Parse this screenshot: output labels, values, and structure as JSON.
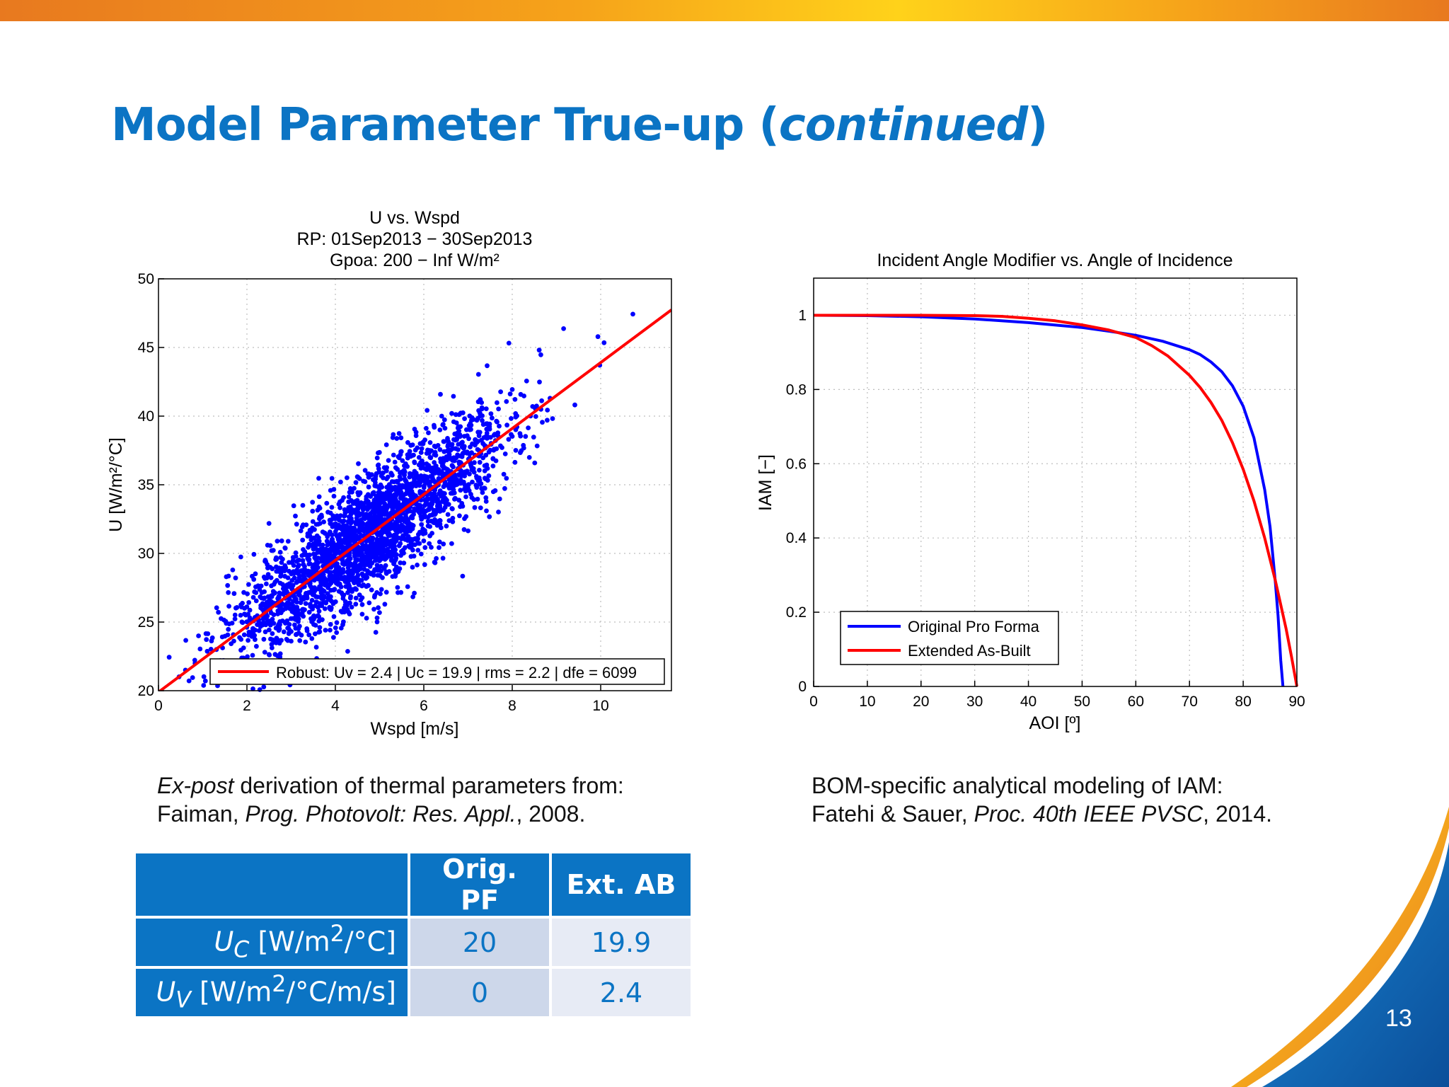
{
  "slide": {
    "title_main": "Model Parameter True-up (",
    "title_italic": "continued",
    "title_close": ")",
    "page_number": "13"
  },
  "captions": {
    "left_line1_italic": "Ex-post",
    "left_line1_rest": " derivation of thermal parameters from:",
    "left_line2_a": "Faiman, ",
    "left_line2_italic": "Prog. Photovolt: Res. Appl.",
    "left_line2_b": ", 2008.",
    "right_line1": "BOM-specific analytical modeling of IAM:",
    "right_line2_a": "Fatehi & Sauer, ",
    "right_line2_italic": "Proc. 40th IEEE PVSC",
    "right_line2_b": ", 2014."
  },
  "table": {
    "headers": [
      "",
      "Orig. PF",
      "Ext. AB"
    ],
    "rows": [
      {
        "symbol": "U",
        "sub": "C",
        "unit_a": " [W/m",
        "sup": "2",
        "unit_b": "/°C]",
        "values": [
          "20",
          "19.9"
        ]
      },
      {
        "symbol": "U",
        "sub": "V",
        "unit_a": " [W/m",
        "sup": "2",
        "unit_b": "/°C/m/s]",
        "values": [
          "0",
          "2.4"
        ]
      }
    ]
  },
  "colors": {
    "accent_blue": "#0b74c4",
    "scatter_blue": "#0000ff",
    "fit_red": "#ff0000",
    "iam_blue": "#0000ff",
    "iam_red": "#ff0000"
  },
  "chart_data": [
    {
      "type": "scatter",
      "title_lines": [
        "U vs. Wspd",
        "RP: 01Sep2013 − 30Sep2013",
        "Gpoa: 200 − Inf W/m²"
      ],
      "xlabel": "Wspd [m/s]",
      "ylabel": "U [W/m²/°C]",
      "xlim": [
        0,
        11.6
      ],
      "ylim": [
        20,
        50
      ],
      "xticks": [
        0,
        2,
        4,
        6,
        8,
        10
      ],
      "yticks": [
        20,
        25,
        30,
        35,
        40,
        45,
        50
      ],
      "grid": true,
      "legend_position": "bottom-right",
      "fit": {
        "name": "Robust: Uv = 2.4 | Uc = 19.9 | rms = 2.2 | dfe = 6099",
        "slope": 2.4,
        "intercept": 19.9,
        "x_range": [
          0,
          11.6
        ]
      },
      "point_count": 6101,
      "point_rms": 2.2,
      "point_x_range": [
        0.2,
        11.6
      ],
      "point_x_center": 4.8
    },
    {
      "type": "line",
      "title": "Incident Angle Modifier vs. Angle of Incidence",
      "xlabel": "AOI [º]",
      "ylabel": "IAM [−]",
      "xlim": [
        0,
        90
      ],
      "ylim": [
        0,
        1.1
      ],
      "xticks": [
        0,
        10,
        20,
        30,
        40,
        50,
        60,
        70,
        80,
        90
      ],
      "yticks": [
        0,
        0.2,
        0.4,
        0.6,
        0.8,
        1
      ],
      "ytick_labels": [
        "0",
        "0.2",
        "0.4",
        "0.6",
        "0.8",
        "1"
      ],
      "grid": true,
      "legend_position": "bottom-left",
      "series": [
        {
          "name": "Original Pro Forma",
          "x": [
            0,
            10,
            20,
            30,
            40,
            50,
            55,
            60,
            65,
            70,
            72,
            74,
            76,
            78,
            80,
            82,
            84,
            85,
            86,
            86.5,
            87,
            87.4
          ],
          "y": [
            1.0,
            0.999,
            0.996,
            0.99,
            0.98,
            0.967,
            0.957,
            0.946,
            0.93,
            0.907,
            0.894,
            0.874,
            0.848,
            0.81,
            0.755,
            0.67,
            0.53,
            0.43,
            0.28,
            0.19,
            0.07,
            0
          ]
        },
        {
          "name": "Extended As-Built",
          "x": [
            0,
            10,
            20,
            30,
            35,
            40,
            45,
            50,
            55,
            60,
            63,
            66,
            70,
            72,
            74,
            76,
            78,
            80,
            82,
            84,
            86,
            88,
            89,
            90
          ],
          "y": [
            1.0,
            1.0,
            1.0,
            0.999,
            0.997,
            0.992,
            0.985,
            0.974,
            0.96,
            0.94,
            0.918,
            0.89,
            0.838,
            0.805,
            0.765,
            0.717,
            0.657,
            0.585,
            0.5,
            0.4,
            0.285,
            0.155,
            0.08,
            0
          ]
        }
      ]
    }
  ]
}
